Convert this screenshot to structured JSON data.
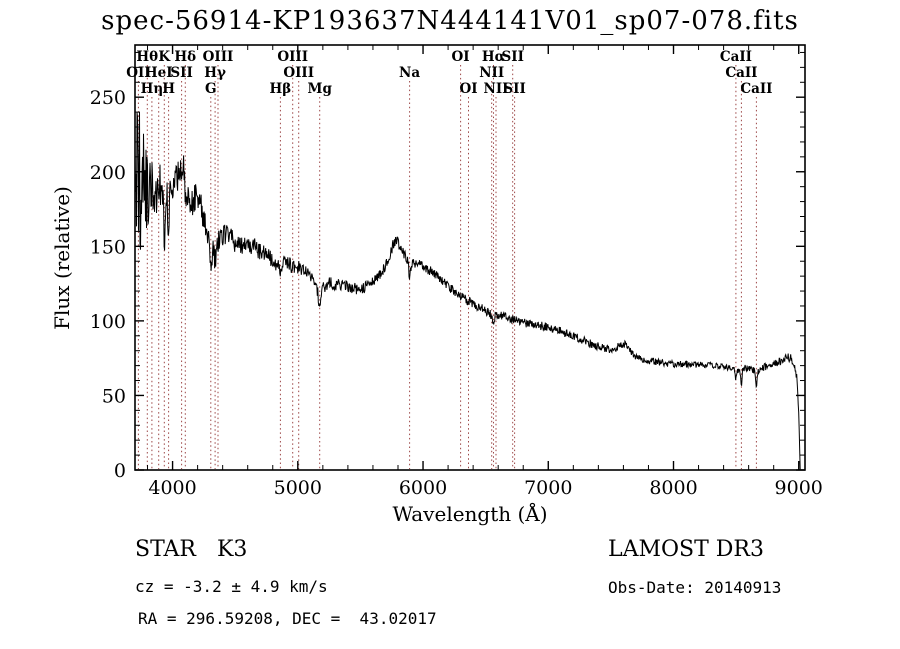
{
  "chart_data": {
    "type": "line",
    "title": "spec-56914-KP193637N444141V01_sp07-078.fits",
    "xlabel": "Wavelength (Å)",
    "ylabel": "Flux (relative)",
    "xlim": [
      3700,
      9050
    ],
    "ylim": [
      0,
      285
    ],
    "xticks": [
      4000,
      5000,
      6000,
      7000,
      8000,
      9000
    ],
    "yticks": [
      0,
      50,
      100,
      150,
      200,
      250
    ],
    "grid": false,
    "legend": "none",
    "line_color": "#000000",
    "marker_color": "#9c4646",
    "series": [
      {
        "name": "spectrum",
        "continuum": [
          [
            3700,
            215
          ],
          [
            3715,
            195
          ],
          [
            3730,
            185
          ],
          [
            3745,
            195
          ],
          [
            3760,
            180
          ],
          [
            3775,
            190
          ],
          [
            3790,
            182
          ],
          [
            3810,
            185
          ],
          [
            3830,
            188
          ],
          [
            3850,
            192
          ],
          [
            3870,
            186
          ],
          [
            3890,
            188
          ],
          [
            3910,
            190
          ],
          [
            3935,
            178
          ],
          [
            3955,
            185
          ],
          [
            3970,
            182
          ],
          [
            4000,
            192
          ],
          [
            4030,
            196
          ],
          [
            4060,
            200
          ],
          [
            4085,
            205
          ],
          [
            4100,
            190
          ],
          [
            4130,
            182
          ],
          [
            4160,
            180
          ],
          [
            4200,
            186
          ],
          [
            4240,
            172
          ],
          [
            4270,
            160
          ],
          [
            4305,
            148
          ],
          [
            4330,
            146
          ],
          [
            4360,
            152
          ],
          [
            4400,
            158
          ],
          [
            4450,
            156
          ],
          [
            4500,
            153
          ],
          [
            4550,
            151
          ],
          [
            4600,
            149
          ],
          [
            4650,
            151
          ],
          [
            4700,
            146
          ],
          [
            4750,
            144
          ],
          [
            4800,
            141
          ],
          [
            4860,
            136
          ],
          [
            4900,
            139
          ],
          [
            4950,
            137
          ],
          [
            5000,
            136
          ],
          [
            5050,
            133
          ],
          [
            5100,
            129
          ],
          [
            5175,
            121
          ],
          [
            5250,
            126
          ],
          [
            5320,
            124
          ],
          [
            5400,
            123
          ],
          [
            5500,
            121
          ],
          [
            5600,
            126
          ],
          [
            5700,
            136
          ],
          [
            5760,
            151
          ],
          [
            5790,
            154
          ],
          [
            5820,
            149
          ],
          [
            5870,
            142
          ],
          [
            5900,
            139
          ],
          [
            5950,
            139
          ],
          [
            6000,
            137
          ],
          [
            6100,
            131
          ],
          [
            6200,
            123
          ],
          [
            6300,
            117
          ],
          [
            6400,
            111
          ],
          [
            6500,
            107
          ],
          [
            6560,
            103
          ],
          [
            6620,
            104
          ],
          [
            6700,
            101
          ],
          [
            6800,
            99
          ],
          [
            6900,
            97
          ],
          [
            7000,
            96
          ],
          [
            7100,
            93
          ],
          [
            7200,
            90
          ],
          [
            7300,
            86
          ],
          [
            7400,
            83
          ],
          [
            7500,
            80
          ],
          [
            7560,
            83
          ],
          [
            7620,
            85
          ],
          [
            7660,
            79
          ],
          [
            7700,
            75
          ],
          [
            7800,
            73
          ],
          [
            7900,
            72
          ],
          [
            8000,
            71
          ],
          [
            8150,
            71
          ],
          [
            8300,
            70
          ],
          [
            8450,
            69
          ],
          [
            8520,
            67
          ],
          [
            8600,
            69
          ],
          [
            8660,
            66
          ],
          [
            8720,
            69
          ],
          [
            8800,
            71
          ],
          [
            8860,
            73
          ],
          [
            8910,
            76
          ],
          [
            8950,
            74
          ],
          [
            8985,
            62
          ],
          [
            9000,
            40
          ],
          [
            9008,
            12
          ],
          [
            9012,
            0
          ]
        ],
        "noise": [
          [
            3700,
            58
          ],
          [
            3760,
            48
          ],
          [
            3800,
            28
          ],
          [
            3850,
            20
          ],
          [
            3900,
            16
          ],
          [
            4000,
            11
          ],
          [
            4150,
            11
          ],
          [
            4300,
            9
          ],
          [
            4500,
            7
          ],
          [
            4800,
            5.5
          ],
          [
            5100,
            4.5
          ],
          [
            5500,
            4
          ],
          [
            5900,
            3.5
          ],
          [
            6300,
            3
          ],
          [
            6700,
            3
          ],
          [
            7100,
            2.8
          ],
          [
            7500,
            2.8
          ],
          [
            8000,
            2.2
          ],
          [
            8500,
            2.2
          ],
          [
            8800,
            2.6
          ],
          [
            8950,
            3
          ],
          [
            9012,
            1.5
          ]
        ]
      }
    ],
    "absorption_features": [
      [
        3934,
        20,
        6
      ],
      [
        3968,
        18,
        6
      ],
      [
        4305,
        10,
        9
      ],
      [
        4341,
        7,
        5
      ],
      [
        4861,
        7,
        5
      ],
      [
        5175,
        10,
        11
      ],
      [
        5893,
        11,
        7
      ],
      [
        6563,
        7,
        5
      ],
      [
        8498,
        7,
        5
      ],
      [
        8542,
        10,
        5
      ],
      [
        8662,
        9,
        5
      ]
    ],
    "spectral_lines": [
      {
        "label": "OII",
        "wavelength": 3727,
        "row": 1
      },
      {
        "label": "Hθ",
        "wavelength": 3798,
        "row": 0
      },
      {
        "label": "Hη",
        "wavelength": 3835,
        "row": 2
      },
      {
        "label": "HeI",
        "wavelength": 3889,
        "row": 1
      },
      {
        "label": "K",
        "wavelength": 3934,
        "row": 0
      },
      {
        "label": "H",
        "wavelength": 3968,
        "row": 2
      },
      {
        "label": "SII",
        "wavelength": 4072,
        "row": 1
      },
      {
        "label": "Hδ",
        "wavelength": 4102,
        "row": 0
      },
      {
        "label": "G",
        "wavelength": 4305,
        "row": 2
      },
      {
        "label": "Hγ",
        "wavelength": 4340,
        "row": 1
      },
      {
        "label": "OIII",
        "wavelength": 4363,
        "row": 0
      },
      {
        "label": "Hβ",
        "wavelength": 4861,
        "row": 2
      },
      {
        "label": "OIII",
        "wavelength": 4959,
        "row": 0
      },
      {
        "label": "OIII",
        "wavelength": 5007,
        "row": 1
      },
      {
        "label": "Mg",
        "wavelength": 5175,
        "row": 2
      },
      {
        "label": "Na",
        "wavelength": 5893,
        "row": 1
      },
      {
        "label": "OI",
        "wavelength": 6300,
        "row": 0
      },
      {
        "label": "OI",
        "wavelength": 6363,
        "row": 2
      },
      {
        "label": "NII",
        "wavelength": 6548,
        "row": 1
      },
      {
        "label": "Hα",
        "wavelength": 6563,
        "row": 0
      },
      {
        "label": "NII",
        "wavelength": 6583,
        "row": 2
      },
      {
        "label": "SII",
        "wavelength": 6716,
        "row": 0
      },
      {
        "label": "SII",
        "wavelength": 6731,
        "row": 2
      },
      {
        "label": "CaII",
        "wavelength": 8498,
        "row": 0
      },
      {
        "label": "CaII",
        "wavelength": 8542,
        "row": 1
      },
      {
        "label": "CaII",
        "wavelength": 8662,
        "row": 2
      }
    ]
  },
  "annotations": {
    "class_label": "STAR   K3",
    "survey": "LAMOST DR3",
    "cz": "cz = -3.2 ± 4.9 km/s",
    "obs_date": "Obs-Date: 20140913",
    "coords": "RA = 296.59208, DEC =  43.02017"
  }
}
